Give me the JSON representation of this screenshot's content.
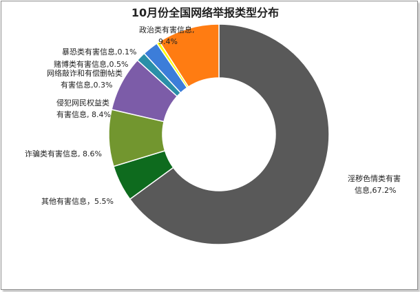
{
  "chart_data": {
    "type": "pie",
    "title": "10月份全国网络举报类型分布",
    "slices": [
      {
        "name": "淫秽色情类有害信息",
        "value": 67.2,
        "color": "#595959",
        "label_lines": [
          "淫秽色情类有害",
          "信息,67.2%"
        ]
      },
      {
        "name": "其他有害信息",
        "value": 5.5,
        "color": "#0e6b1e",
        "label_lines": [
          "其他有害信息，5.5%"
        ]
      },
      {
        "name": "诈骗类有害信息",
        "value": 8.6,
        "color": "#72962f",
        "label_lines": [
          "诈骗类有害信息, 8.6%"
        ]
      },
      {
        "name": "侵犯网民权益类有害信息",
        "value": 8.4,
        "color": "#7c5ca8",
        "label_lines": [
          "侵犯网民权益类",
          "有害信息, 8.4%"
        ]
      },
      {
        "name": "网络敲诈和有偿删帖类有害信息",
        "value": 0.3,
        "color": "#2a8fa8",
        "label_lines": [
          "网络敲诈和有偿删帖类",
          "有害信息,0.3%"
        ]
      },
      {
        "name": "赌博类有害信息",
        "value": 0.5,
        "color": "#3c7dd9",
        "label_lines": [
          "赌博类有害信息,0.5%"
        ]
      },
      {
        "name": "暴恐类有害信息",
        "value": 0.1,
        "color": "#ffff00",
        "label_lines": [
          "暴恐类有害信息,0.1%"
        ]
      },
      {
        "name": "政治类有害信息",
        "value": 9.4,
        "color": "#ff7c12",
        "label_lines": [
          "政治类有害信息,",
          "9.4%"
        ]
      }
    ]
  }
}
